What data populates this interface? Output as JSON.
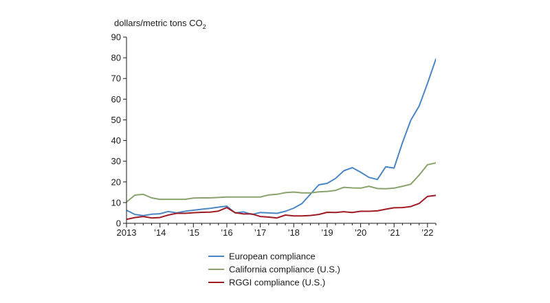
{
  "chart_data": {
    "type": "line",
    "title": "",
    "ylabel": "dollars/metric tons CO",
    "ylabel_subscript": "2",
    "xlabel": "",
    "ylim": [
      0,
      90
    ],
    "yticks": [
      0,
      10,
      20,
      30,
      40,
      50,
      60,
      70,
      80,
      90
    ],
    "xlim": [
      2013.0,
      2022.25
    ],
    "xtick_values": [
      2013,
      2014,
      2015,
      2016,
      2017,
      2018,
      2019,
      2020,
      2021,
      2022
    ],
    "xtick_labels": [
      "2013",
      "’14",
      "’15",
      "’16",
      "’17",
      "’18",
      "’19",
      "’20",
      "’21",
      "’22"
    ],
    "grid": false,
    "legend_position": "bottom",
    "series": [
      {
        "name": "European compliance",
        "color": "#4a86c5",
        "points": [
          [
            2013.0,
            6.3
          ],
          [
            2013.25,
            4.3
          ],
          [
            2013.5,
            3.7
          ],
          [
            2013.75,
            4.4
          ],
          [
            2014.0,
            4.6
          ],
          [
            2014.25,
            5.7
          ],
          [
            2014.5,
            5.0
          ],
          [
            2014.75,
            5.8
          ],
          [
            2015.0,
            6.3
          ],
          [
            2015.25,
            6.8
          ],
          [
            2015.5,
            7.2
          ],
          [
            2015.75,
            7.8
          ],
          [
            2016.0,
            8.3
          ],
          [
            2016.25,
            5.0
          ],
          [
            2016.5,
            5.5
          ],
          [
            2016.75,
            4.3
          ],
          [
            2017.0,
            5.2
          ],
          [
            2017.25,
            5.0
          ],
          [
            2017.5,
            4.8
          ],
          [
            2017.75,
            5.8
          ],
          [
            2018.0,
            7.3
          ],
          [
            2018.25,
            9.6
          ],
          [
            2018.5,
            14.1
          ],
          [
            2018.75,
            18.6
          ],
          [
            2019.0,
            19.3
          ],
          [
            2019.25,
            21.7
          ],
          [
            2019.5,
            25.4
          ],
          [
            2019.75,
            26.9
          ],
          [
            2020.0,
            24.7
          ],
          [
            2020.25,
            22.2
          ],
          [
            2020.5,
            21.2
          ],
          [
            2020.75,
            27.3
          ],
          [
            2021.0,
            26.7
          ],
          [
            2021.25,
            39.0
          ],
          [
            2021.5,
            49.8
          ],
          [
            2021.75,
            56.7
          ],
          [
            2022.0,
            67.6
          ],
          [
            2022.25,
            79.4
          ],
          [
            2022.5,
            82.8
          ]
        ]
      },
      {
        "name": "California compliance (U.S.)",
        "color": "#8aa26b",
        "points": [
          [
            2013.0,
            10.3
          ],
          [
            2013.25,
            13.6
          ],
          [
            2013.5,
            14.0
          ],
          [
            2013.75,
            12.3
          ],
          [
            2014.0,
            11.6
          ],
          [
            2014.25,
            11.6
          ],
          [
            2014.5,
            11.6
          ],
          [
            2014.75,
            11.6
          ],
          [
            2015.0,
            12.2
          ],
          [
            2015.25,
            12.3
          ],
          [
            2015.5,
            12.3
          ],
          [
            2015.75,
            12.5
          ],
          [
            2016.0,
            12.7
          ],
          [
            2016.25,
            12.7
          ],
          [
            2016.5,
            12.7
          ],
          [
            2016.75,
            12.7
          ],
          [
            2017.0,
            12.7
          ],
          [
            2017.25,
            13.7
          ],
          [
            2017.5,
            14.0
          ],
          [
            2017.75,
            14.8
          ],
          [
            2018.0,
            15.1
          ],
          [
            2018.25,
            14.7
          ],
          [
            2018.5,
            14.7
          ],
          [
            2018.75,
            15.2
          ],
          [
            2019.0,
            15.4
          ],
          [
            2019.25,
            15.9
          ],
          [
            2019.5,
            17.4
          ],
          [
            2019.75,
            17.1
          ],
          [
            2020.0,
            17.0
          ],
          [
            2020.25,
            17.9
          ],
          [
            2020.5,
            16.8
          ],
          [
            2020.75,
            16.7
          ],
          [
            2021.0,
            17.0
          ],
          [
            2021.25,
            17.9
          ],
          [
            2021.5,
            18.9
          ],
          [
            2021.75,
            23.3
          ],
          [
            2022.0,
            28.3
          ],
          [
            2022.25,
            29.2
          ],
          [
            2022.5,
            30.8
          ]
        ]
      },
      {
        "name": "RGGI compliance (U.S.)",
        "color": "#9e1b24",
        "points": [
          [
            2013.0,
            1.9
          ],
          [
            2013.25,
            2.8
          ],
          [
            2013.5,
            3.3
          ],
          [
            2013.75,
            2.6
          ],
          [
            2014.0,
            2.8
          ],
          [
            2014.25,
            4.0
          ],
          [
            2014.5,
            4.8
          ],
          [
            2014.75,
            4.8
          ],
          [
            2015.0,
            5.1
          ],
          [
            2015.25,
            5.3
          ],
          [
            2015.5,
            5.4
          ],
          [
            2015.75,
            5.9
          ],
          [
            2016.0,
            7.6
          ],
          [
            2016.25,
            5.1
          ],
          [
            2016.5,
            4.5
          ],
          [
            2016.75,
            4.5
          ],
          [
            2017.0,
            3.3
          ],
          [
            2017.25,
            3.0
          ],
          [
            2017.5,
            2.6
          ],
          [
            2017.75,
            4.0
          ],
          [
            2018.0,
            3.6
          ],
          [
            2018.25,
            3.6
          ],
          [
            2018.5,
            3.8
          ],
          [
            2018.75,
            4.3
          ],
          [
            2019.0,
            5.3
          ],
          [
            2019.25,
            5.2
          ],
          [
            2019.5,
            5.6
          ],
          [
            2019.75,
            5.2
          ],
          [
            2020.0,
            5.8
          ],
          [
            2020.25,
            5.8
          ],
          [
            2020.5,
            6.0
          ],
          [
            2020.75,
            6.8
          ],
          [
            2021.0,
            7.5
          ],
          [
            2021.25,
            7.6
          ],
          [
            2021.5,
            8.1
          ],
          [
            2021.75,
            9.6
          ],
          [
            2022.0,
            13.0
          ],
          [
            2022.25,
            13.5
          ],
          [
            2022.5,
            13.9
          ]
        ]
      }
    ]
  }
}
